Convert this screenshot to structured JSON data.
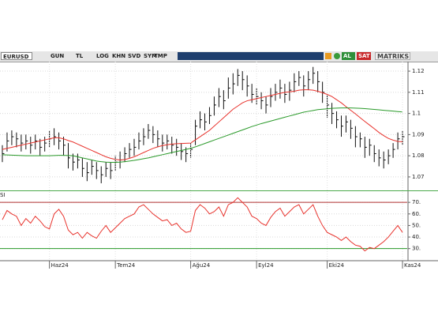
{
  "toolbar": {
    "symbol": "EURUSD",
    "buttons": [
      "GUN",
      "TL",
      "LOG",
      "KHN",
      "SVD",
      "SYM",
      "TMP"
    ],
    "buy": "AL",
    "sell": "SAT",
    "brand": "MATRIKS"
  },
  "chart_data": [
    {
      "type": "ohlc",
      "ylim": [
        1.064,
        1.1245
      ],
      "yticks": [
        1.07,
        1.08,
        1.09,
        1.1,
        1.11,
        1.12
      ],
      "xlim": [
        -0.5,
        86
      ],
      "grid": true,
      "color": "#111111",
      "high": [
        1.085,
        1.091,
        1.092,
        1.091,
        1.09,
        1.09,
        1.089,
        1.09,
        1.088,
        1.089,
        1.092,
        1.093,
        1.091,
        1.089,
        1.086,
        1.081,
        1.081,
        1.079,
        1.077,
        1.078,
        1.077,
        1.075,
        1.077,
        1.077,
        1.08,
        1.082,
        1.084,
        1.086,
        1.088,
        1.091,
        1.093,
        1.095,
        1.094,
        1.092,
        1.09,
        1.09,
        1.089,
        1.088,
        1.086,
        1.084,
        1.086,
        1.097,
        1.101,
        1.1,
        1.103,
        1.108,
        1.112,
        1.111,
        1.117,
        1.119,
        1.121,
        1.12,
        1.118,
        1.114,
        1.112,
        1.11,
        1.108,
        1.112,
        1.114,
        1.116,
        1.114,
        1.115,
        1.119,
        1.12,
        1.118,
        1.12,
        1.122,
        1.12,
        1.115,
        1.109,
        1.105,
        1.101,
        1.099,
        1.099,
        1.097,
        1.094,
        1.091,
        1.089,
        1.088,
        1.085,
        1.083,
        1.082,
        1.083,
        1.086,
        1.091,
        1.092
      ],
      "low": [
        1.077,
        1.082,
        1.085,
        1.084,
        1.082,
        1.083,
        1.081,
        1.083,
        1.08,
        1.082,
        1.084,
        1.085,
        1.083,
        1.08,
        1.074,
        1.073,
        1.074,
        1.07,
        1.068,
        1.071,
        1.069,
        1.067,
        1.07,
        1.069,
        1.073,
        1.074,
        1.077,
        1.079,
        1.08,
        1.083,
        1.085,
        1.088,
        1.086,
        1.084,
        1.082,
        1.083,
        1.081,
        1.08,
        1.078,
        1.077,
        1.079,
        1.085,
        1.093,
        1.092,
        1.095,
        1.099,
        1.103,
        1.102,
        1.107,
        1.109,
        1.113,
        1.111,
        1.108,
        1.105,
        1.104,
        1.102,
        1.1,
        1.103,
        1.106,
        1.107,
        1.105,
        1.106,
        1.11,
        1.113,
        1.108,
        1.111,
        1.114,
        1.11,
        1.105,
        1.098,
        1.095,
        1.093,
        1.089,
        1.091,
        1.088,
        1.084,
        1.084,
        1.079,
        1.08,
        1.077,
        1.075,
        1.074,
        1.076,
        1.079,
        1.083,
        1.085
      ],
      "close": [
        1.081,
        1.087,
        1.089,
        1.088,
        1.086,
        1.087,
        1.085,
        1.087,
        1.084,
        1.086,
        1.088,
        1.089,
        1.087,
        1.085,
        1.079,
        1.077,
        1.078,
        1.074,
        1.072,
        1.075,
        1.073,
        1.071,
        1.074,
        1.073,
        1.077,
        1.078,
        1.081,
        1.083,
        1.084,
        1.087,
        1.089,
        1.092,
        1.09,
        1.088,
        1.086,
        1.087,
        1.085,
        1.084,
        1.082,
        1.081,
        1.083,
        1.094,
        1.097,
        1.096,
        1.099,
        1.104,
        1.108,
        1.106,
        1.112,
        1.114,
        1.118,
        1.116,
        1.113,
        1.109,
        1.108,
        1.106,
        1.104,
        1.108,
        1.11,
        1.112,
        1.109,
        1.111,
        1.115,
        1.117,
        1.113,
        1.116,
        1.119,
        1.115,
        1.11,
        1.104,
        1.1,
        1.097,
        1.094,
        1.096,
        1.093,
        1.089,
        1.088,
        1.084,
        1.085,
        1.081,
        1.079,
        1.078,
        1.08,
        1.083,
        1.088,
        1.089
      ],
      "series": [
        {
          "color": "#e8322c",
          "values": [
            1.083,
            1.0835,
            1.084,
            1.0845,
            1.085,
            1.0855,
            1.086,
            1.0865,
            1.087,
            1.0875,
            1.088,
            1.0885,
            1.0885,
            1.088,
            1.0872,
            1.0865,
            1.0855,
            1.0845,
            1.0835,
            1.0825,
            1.0815,
            1.0805,
            1.0795,
            1.0788,
            1.0783,
            1.078,
            1.0782,
            1.0788,
            1.0795,
            1.0805,
            1.0815,
            1.0825,
            1.0835,
            1.0842,
            1.0848,
            1.0852,
            1.0855,
            1.0857,
            1.0858,
            1.0859,
            1.086,
            1.0875,
            1.089,
            1.0905,
            1.092,
            1.094,
            1.096,
            1.098,
            1.1,
            1.102,
            1.1035,
            1.105,
            1.106,
            1.1065,
            1.107,
            1.1075,
            1.108,
            1.1085,
            1.109,
            1.1095,
            1.11,
            1.1102,
            1.1105,
            1.111,
            1.1112,
            1.1112,
            1.111,
            1.1105,
            1.1098,
            1.109,
            1.108,
            1.1065,
            1.105,
            1.1032,
            1.1015,
            1.0998,
            1.098,
            1.0962,
            1.0945,
            1.0928,
            1.091,
            1.0895,
            1.0882,
            1.0874,
            1.0868,
            1.0866
          ]
        },
        {
          "color": "#2a9a2a",
          "values": [
            1.0805,
            1.0804,
            1.0803,
            1.0802,
            1.0801,
            1.08,
            1.08,
            1.08,
            1.08,
            1.08,
            1.08,
            1.0801,
            1.0802,
            1.0802,
            1.0801,
            1.08,
            1.0795,
            1.079,
            1.0785,
            1.078,
            1.0775,
            1.0772,
            1.077,
            1.0769,
            1.0769,
            1.077,
            1.0772,
            1.0775,
            1.0778,
            1.0782,
            1.0786,
            1.079,
            1.0795,
            1.08,
            1.0805,
            1.081,
            1.0815,
            1.082,
            1.0825,
            1.083,
            1.0835,
            1.0842,
            1.085,
            1.0858,
            1.0866,
            1.0874,
            1.0882,
            1.089,
            1.0898,
            1.0906,
            1.0914,
            1.0922,
            1.093,
            1.0938,
            1.0945,
            1.0952,
            1.0958,
            1.0964,
            1.097,
            1.0976,
            1.0982,
            1.0988,
            1.0994,
            1.1,
            1.1006,
            1.101,
            1.1014,
            1.1018,
            1.102,
            1.1022,
            1.1024,
            1.1025,
            1.1026,
            1.1026,
            1.1026,
            1.1025,
            1.1024,
            1.1023,
            1.1021,
            1.1019,
            1.1017,
            1.1015,
            1.1013,
            1.1011,
            1.1009,
            1.1007
          ]
        }
      ]
    },
    {
      "type": "line",
      "title": "SI",
      "ylim": [
        25,
        79
      ],
      "xlim": [
        -0.5,
        86
      ],
      "grid": true,
      "yticks": [
        {
          "value": 30,
          "label": "30."
        },
        {
          "value": 40,
          "label": "40."
        },
        {
          "value": 50,
          "label": "50."
        },
        {
          "value": 60,
          "label": "60."
        },
        {
          "value": 70,
          "label": "70."
        }
      ],
      "xticks": [
        {
          "value": 10,
          "label": "Haz24"
        },
        {
          "value": 24,
          "label": "Tem24"
        },
        {
          "value": 40,
          "label": "Ağu24"
        },
        {
          "value": 54,
          "label": "Eyl24"
        },
        {
          "value": 69,
          "label": "Eki24"
        },
        {
          "value": 85,
          "label": "Kas24"
        }
      ],
      "hlines": [
        {
          "value": 70,
          "color": "#b03030"
        },
        {
          "value": 30,
          "color": "#2a9a2a"
        }
      ],
      "series": [
        {
          "color": "#e8322c",
          "values": [
            55,
            63,
            60,
            58,
            50,
            56,
            52,
            58,
            54,
            49,
            47,
            60,
            64,
            58,
            46,
            42,
            44,
            39,
            44,
            41,
            39,
            45,
            50,
            44,
            48,
            52,
            56,
            58,
            60,
            66,
            68,
            64,
            60,
            57,
            54,
            55,
            50,
            52,
            47,
            44,
            45,
            63,
            68,
            65,
            60,
            62,
            66,
            58,
            68,
            70,
            74,
            70,
            66,
            58,
            56,
            52,
            50,
            57,
            62,
            65,
            58,
            62,
            66,
            68,
            60,
            64,
            68,
            58,
            50,
            44,
            42,
            40,
            37,
            40,
            36,
            33,
            32,
            28,
            31,
            30,
            33,
            36,
            40,
            45,
            50,
            44
          ]
        }
      ]
    }
  ]
}
